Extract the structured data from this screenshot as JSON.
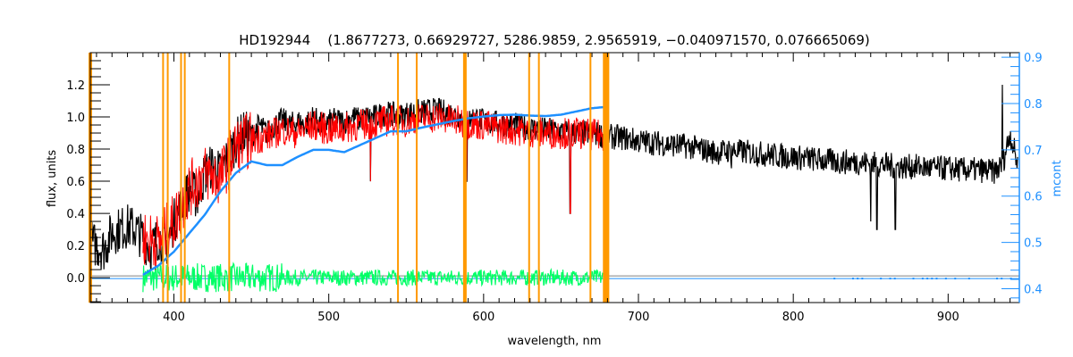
{
  "chart_data": {
    "type": "line",
    "title": "HD192944    (1.8677273, 0.66929727, 5286.9859, 2.9565919, −0.040971570, 0.076665069)",
    "xlabel": "wavelength, nm",
    "ylabel": "flux, units",
    "y2label": "mcont",
    "xlim": [
      346,
      946
    ],
    "ylim": [
      -0.155,
      1.4
    ],
    "y2lim": [
      0.37,
      0.91
    ],
    "xticks": [
      400,
      500,
      600,
      700,
      800,
      900
    ],
    "xtick_labels": [
      "400",
      "500",
      "600",
      "700",
      "800",
      "900"
    ],
    "yticks": [
      0.0,
      0.2,
      0.4,
      0.6,
      0.8,
      1.0,
      1.2
    ],
    "ytick_labels": [
      "0.0",
      "0.2",
      "0.4",
      "0.6",
      "0.8",
      "1.0",
      "1.2"
    ],
    "y2ticks": [
      0.4,
      0.5,
      0.6,
      0.7,
      0.8,
      0.9
    ],
    "y2tick_labels": [
      "0.4",
      "0.5",
      "0.6",
      "0.7",
      "0.8",
      "0.9"
    ],
    "grid": false,
    "colors": {
      "observed": "#000000",
      "model": "#ff0000",
      "continuum": "#1e90ff",
      "residual": "#00ff66",
      "mask": "#ff9900",
      "zero": "#808080",
      "axis2": "#1e90ff"
    },
    "mask_lines_nm": [
      346,
      393,
      396,
      404.6,
      407,
      435.7,
      544.7,
      556.8,
      587.9,
      629.4,
      635.7,
      669,
      678.2,
      680
    ],
    "series": [
      {
        "name": "observed flux",
        "axis": "left",
        "x": [
          346,
          350,
          355,
          360,
          365,
          370,
          375,
          380,
          385,
          390,
          395,
          400,
          405,
          410,
          415,
          420,
          425,
          430,
          435,
          440,
          445,
          450,
          455,
          460,
          465,
          470,
          475,
          480,
          485,
          490,
          495,
          500,
          505,
          510,
          515,
          520,
          525,
          530,
          535,
          540,
          545,
          550,
          555,
          560,
          565,
          570,
          575,
          580,
          585,
          590,
          595,
          600,
          610,
          620,
          630,
          640,
          650,
          660,
          670,
          680,
          690,
          700,
          710,
          720,
          730,
          740,
          750,
          760,
          770,
          780,
          790,
          800,
          810,
          820,
          830,
          840,
          850,
          860,
          870,
          880,
          890,
          900,
          910,
          920,
          930,
          935,
          940,
          945
        ],
        "y": [
          0.22,
          0.2,
          0.18,
          0.28,
          0.3,
          0.32,
          0.3,
          0.25,
          0.18,
          0.25,
          0.2,
          0.35,
          0.45,
          0.55,
          0.5,
          0.65,
          0.7,
          0.65,
          0.75,
          0.85,
          0.9,
          0.88,
          0.95,
          0.9,
          0.95,
          0.98,
          0.95,
          0.97,
          0.95,
          1.0,
          0.95,
          0.97,
          0.98,
          0.97,
          1.0,
          0.98,
          1.0,
          1.0,
          1.02,
          1.02,
          1.0,
          1.02,
          1.03,
          1.03,
          1.04,
          1.04,
          1.03,
          1.02,
          1.0,
          0.98,
          1.0,
          0.97,
          0.96,
          0.95,
          0.93,
          0.92,
          0.91,
          0.9,
          0.9,
          0.88,
          0.87,
          0.85,
          0.84,
          0.83,
          0.82,
          0.8,
          0.78,
          0.79,
          0.78,
          0.77,
          0.76,
          0.75,
          0.74,
          0.73,
          0.72,
          0.72,
          0.71,
          0.7,
          0.69,
          0.69,
          0.68,
          0.68,
          0.67,
          0.67,
          0.66,
          0.7,
          0.9,
          0.7
        ]
      },
      {
        "name": "model flux",
        "axis": "left",
        "x": [
          380,
          390,
          400,
          410,
          420,
          430,
          440,
          450,
          460,
          470,
          480,
          490,
          500,
          510,
          520,
          530,
          540,
          550,
          560,
          570,
          580,
          590,
          600,
          610,
          620,
          630,
          640,
          650,
          660,
          670,
          680
        ],
        "y": [
          0.25,
          0.22,
          0.35,
          0.55,
          0.65,
          0.62,
          0.82,
          0.86,
          0.88,
          0.92,
          0.9,
          0.95,
          0.92,
          0.93,
          0.95,
          0.96,
          0.98,
          0.97,
          0.99,
          1.0,
          0.98,
          0.96,
          0.95,
          0.93,
          0.92,
          0.91,
          0.9,
          0.9,
          0.9,
          0.89,
          0.88
        ]
      },
      {
        "name": "continuum",
        "axis": "right",
        "x": [
          380,
          390,
          400,
          410,
          420,
          430,
          440,
          450,
          460,
          470,
          480,
          490,
          500,
          510,
          520,
          530,
          540,
          550,
          560,
          570,
          580,
          590,
          600,
          610,
          620,
          630,
          640,
          650,
          660,
          670,
          680
        ],
        "y": [
          0.43,
          0.45,
          0.48,
          0.52,
          0.56,
          0.61,
          0.65,
          0.675,
          0.667,
          0.667,
          0.685,
          0.7,
          0.7,
          0.695,
          0.71,
          0.725,
          0.74,
          0.74,
          0.748,
          0.755,
          0.762,
          0.768,
          0.772,
          0.775,
          0.776,
          0.774,
          0.773,
          0.776,
          0.783,
          0.79,
          0.793
        ]
      },
      {
        "name": "residual",
        "axis": "left",
        "x_range": [
          380,
          680
        ],
        "y_center": 0.0
      }
    ],
    "absorption_features": [
      {
        "nm": 589,
        "depth_to": 0.6
      },
      {
        "nm": 527,
        "depth_to": 0.6
      },
      {
        "nm": 656,
        "depth_to": 0.4
      },
      {
        "nm": 850,
        "depth_to": 0.35
      },
      {
        "nm": 854,
        "depth_to": 0.3
      },
      {
        "nm": 866,
        "depth_to": 0.3
      },
      {
        "nm": 760,
        "depth_to": 0.68
      },
      {
        "nm": 935,
        "depth_to": 1.2
      }
    ]
  }
}
